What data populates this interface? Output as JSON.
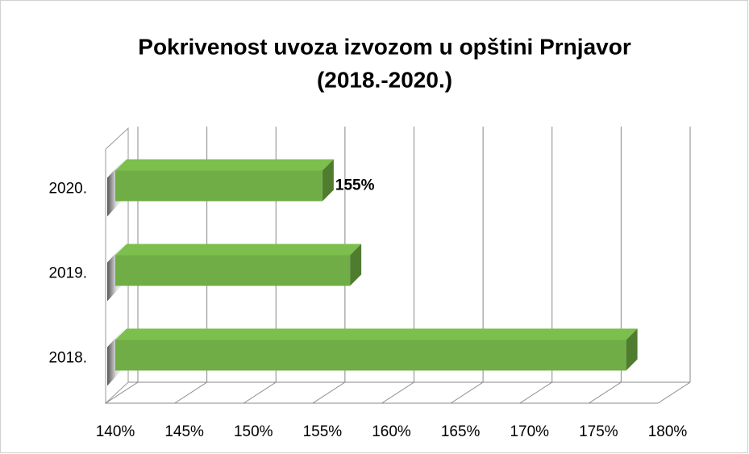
{
  "chart_data": {
    "type": "bar3d",
    "orientation": "horizontal",
    "title": [
      "Pokrivenost uvoza izvozom u opštini Prnjavor",
      "(2018.-2020.)"
    ],
    "categories": [
      "2018.",
      "2019.",
      "2020."
    ],
    "values": [
      177,
      157,
      155
    ],
    "value_labels": [
      null,
      null,
      "155%"
    ],
    "color": "#70ad47",
    "xlim": [
      140,
      180
    ],
    "xticks": [
      {
        "value": 140,
        "label": "140%"
      },
      {
        "value": 145,
        "label": "145%"
      },
      {
        "value": 150,
        "label": "150%"
      },
      {
        "value": 155,
        "label": "155%"
      },
      {
        "value": 160,
        "label": "160%"
      },
      {
        "value": 165,
        "label": "165%"
      },
      {
        "value": 170,
        "label": "170%"
      },
      {
        "value": 175,
        "label": "175%"
      },
      {
        "value": 180,
        "label": "180%"
      }
    ],
    "grid": true
  }
}
